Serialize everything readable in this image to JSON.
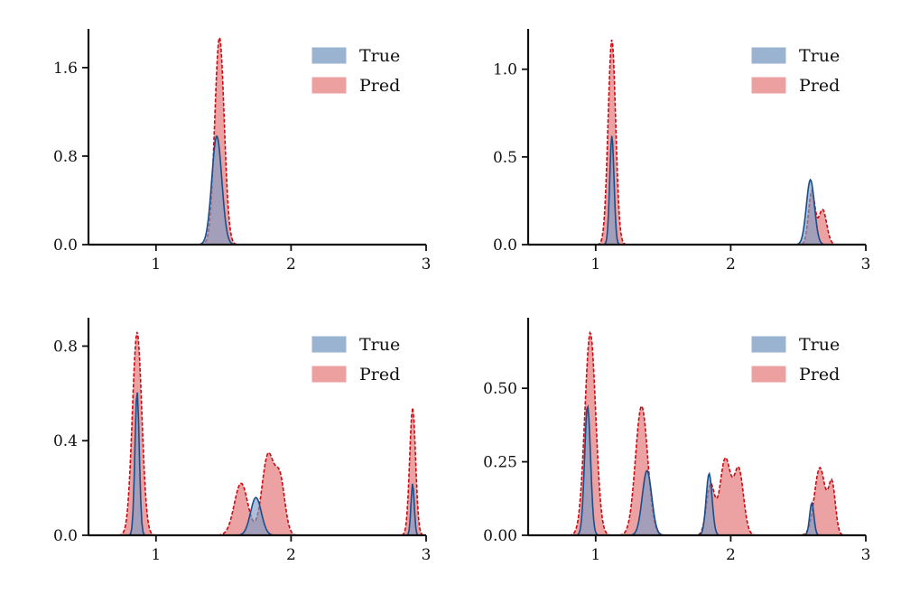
{
  "colors": {
    "true_fill": "#7d9dc4",
    "true_line": "#1a4e8a",
    "pred_fill": "#e06466",
    "pred_line": "#cc0a12",
    "legend_true": "#99b3d1",
    "legend_pred": "#eda0a0",
    "axis": "#111111"
  },
  "chart_data": [
    {
      "type": "area",
      "xlim": [
        0.5,
        3.0
      ],
      "ylim": [
        0,
        1.95
      ],
      "xticks": [
        1,
        2,
        3
      ],
      "xtick_labels": [
        "1",
        "2",
        "3"
      ],
      "yticks": [
        0,
        0.8,
        1.6
      ],
      "ytick_labels": [
        "0.0",
        "0.8",
        "1.6"
      ],
      "legend": {
        "position": "top-right",
        "entries": [
          "True",
          "Pred"
        ]
      },
      "series": [
        {
          "name": "True",
          "peaks": [
            {
              "x": 1.45,
              "y": 0.98,
              "sigma": 0.037
            }
          ]
        },
        {
          "name": "Pred",
          "peaks": [
            {
              "x": 1.47,
              "y": 1.87,
              "sigma": 0.035
            }
          ]
        }
      ]
    },
    {
      "type": "area",
      "xlim": [
        0.5,
        3.0
      ],
      "ylim": [
        0,
        1.23
      ],
      "xticks": [
        1,
        2,
        3
      ],
      "xtick_labels": [
        "1",
        "2",
        "3"
      ],
      "yticks": [
        0,
        0.5,
        1.0
      ],
      "ytick_labels": [
        "0.0",
        "0.5",
        "1.0"
      ],
      "legend": {
        "position": "top-right",
        "entries": [
          "True",
          "Pred"
        ]
      },
      "series": [
        {
          "name": "True",
          "peaks": [
            {
              "x": 1.12,
              "y": 0.62,
              "sigma": 0.016
            },
            {
              "x": 2.59,
              "y": 0.37,
              "sigma": 0.03
            }
          ]
        },
        {
          "name": "Pred",
          "peaks": [
            {
              "x": 1.12,
              "y": 1.17,
              "sigma": 0.028
            },
            {
              "x": 2.6,
              "y": 0.3,
              "sigma": 0.024
            },
            {
              "x": 2.68,
              "y": 0.2,
              "sigma": 0.03
            }
          ]
        }
      ]
    },
    {
      "type": "area",
      "xlim": [
        0.5,
        3.0
      ],
      "ylim": [
        0,
        0.92
      ],
      "xticks": [
        1,
        2,
        3
      ],
      "xtick_labels": [
        "1",
        "2",
        "3"
      ],
      "yticks": [
        0,
        0.4,
        0.8
      ],
      "ytick_labels": [
        "0.0",
        "0.4",
        "0.8"
      ],
      "legend": {
        "position": "top-right",
        "entries": [
          "True",
          "Pred"
        ]
      },
      "series": [
        {
          "name": "True",
          "peaks": [
            {
              "x": 0.86,
              "y": 0.61,
              "sigma": 0.016
            },
            {
              "x": 1.74,
              "y": 0.16,
              "sigma": 0.04
            },
            {
              "x": 2.9,
              "y": 0.22,
              "sigma": 0.012
            }
          ]
        },
        {
          "name": "Pred",
          "peaks": [
            {
              "x": 0.86,
              "y": 0.86,
              "sigma": 0.035
            },
            {
              "x": 1.63,
              "y": 0.22,
              "sigma": 0.05
            },
            {
              "x": 1.83,
              "y": 0.34,
              "sigma": 0.045
            },
            {
              "x": 1.92,
              "y": 0.22,
              "sigma": 0.035
            },
            {
              "x": 2.9,
              "y": 0.54,
              "sigma": 0.022
            }
          ]
        }
      ]
    },
    {
      "type": "area",
      "xlim": [
        0.5,
        3.0
      ],
      "ylim": [
        0,
        0.74
      ],
      "xticks": [
        1,
        2,
        3
      ],
      "xtick_labels": [
        "1",
        "2",
        "3"
      ],
      "yticks": [
        0,
        0.25,
        0.5
      ],
      "ytick_labels": [
        "0.00",
        "0.25",
        "0.50"
      ],
      "legend": {
        "position": "top-right",
        "entries": [
          "True",
          "Pred"
        ]
      },
      "series": [
        {
          "name": "True",
          "peaks": [
            {
              "x": 0.94,
              "y": 0.44,
              "sigma": 0.022
            },
            {
              "x": 1.38,
              "y": 0.22,
              "sigma": 0.035
            },
            {
              "x": 1.84,
              "y": 0.21,
              "sigma": 0.022
            },
            {
              "x": 2.6,
              "y": 0.11,
              "sigma": 0.016
            }
          ]
        },
        {
          "name": "Pred",
          "peaks": [
            {
              "x": 0.96,
              "y": 0.69,
              "sigma": 0.04
            },
            {
              "x": 1.34,
              "y": 0.44,
              "sigma": 0.045
            },
            {
              "x": 1.85,
              "y": 0.17,
              "sigma": 0.03
            },
            {
              "x": 1.96,
              "y": 0.26,
              "sigma": 0.04
            },
            {
              "x": 2.06,
              "y": 0.22,
              "sigma": 0.035
            },
            {
              "x": 2.66,
              "y": 0.23,
              "sigma": 0.04
            },
            {
              "x": 2.75,
              "y": 0.17,
              "sigma": 0.025
            }
          ]
        }
      ]
    }
  ]
}
